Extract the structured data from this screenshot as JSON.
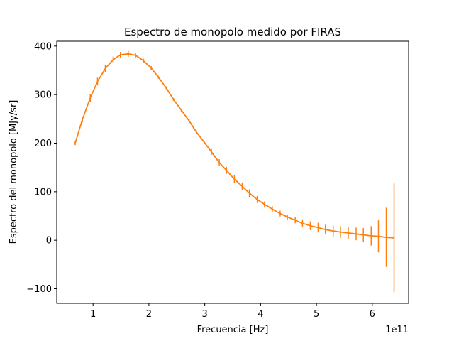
{
  "chart_data": {
    "type": "line",
    "title": "Espectro de monopolo medido por FIRAS",
    "xlabel": "Frecuencia [Hz]",
    "ylabel": "Espectro del monopolo [MJy/sr]",
    "x_offset_label": "1e11",
    "xlim": [
      0.35,
      6.65
    ],
    "ylim": [
      -130,
      410
    ],
    "x_ticks": [
      1,
      2,
      3,
      4,
      5,
      6
    ],
    "x_tick_labels": [
      "1",
      "2",
      "3",
      "4",
      "5",
      "6"
    ],
    "y_ticks": [
      -100,
      0,
      100,
      200,
      300,
      400
    ],
    "y_tick_labels": [
      "−100",
      "0",
      "100",
      "200",
      "300",
      "400"
    ],
    "grid": false,
    "series": [
      {
        "color": "#ff7f0e",
        "x": [
          0.68,
          0.81,
          0.95,
          1.08,
          1.22,
          1.36,
          1.49,
          1.63,
          1.76,
          1.9,
          2.04,
          2.17,
          2.31,
          2.44,
          2.58,
          2.72,
          2.85,
          2.99,
          3.12,
          3.26,
          3.39,
          3.53,
          3.67,
          3.8,
          3.94,
          4.07,
          4.21,
          4.35,
          4.48,
          4.62,
          4.75,
          4.89,
          5.03,
          5.16,
          5.3,
          5.43,
          5.57,
          5.71,
          5.84,
          5.98,
          6.11,
          6.25,
          6.39
        ],
        "y": [
          200,
          249,
          293,
          327,
          354,
          372,
          382,
          384,
          381,
          370,
          355,
          336,
          314,
          290,
          268,
          246,
          223,
          202,
          182,
          160,
          144,
          126,
          111,
          97,
          84,
          74,
          64,
          55,
          48,
          41,
          35,
          30,
          26,
          22,
          19,
          17,
          15,
          13,
          11,
          9,
          8,
          6,
          5
        ],
        "error": [
          4,
          6,
          8,
          8,
          8,
          7,
          6,
          6,
          5,
          4,
          4,
          3,
          3,
          3,
          3,
          3,
          3,
          3,
          6,
          7,
          7,
          8,
          8,
          8,
          7,
          6,
          6,
          6,
          5,
          6,
          8,
          9,
          10,
          10,
          11,
          12,
          12,
          13,
          14,
          20,
          33,
          61,
          112
        ]
      }
    ]
  }
}
